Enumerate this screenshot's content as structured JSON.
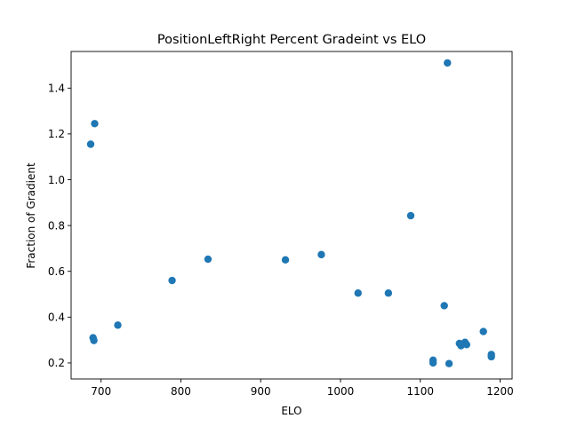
{
  "chart_data": {
    "type": "scatter",
    "title": "PositionLeftRight Percent Gradeint vs ELO",
    "xlabel": "ELO",
    "ylabel": "Fraction of Gradient",
    "xlim": [
      662.5,
      1215
    ],
    "ylim": [
      0.13,
      1.56
    ],
    "xticks": [
      700,
      800,
      900,
      1000,
      1100,
      1200
    ],
    "yticks": [
      0.2,
      0.4,
      0.6,
      0.8,
      1.0,
      1.2,
      1.4
    ],
    "xtick_labels": [
      "700",
      "800",
      "900",
      "1000",
      "1100",
      "1200"
    ],
    "ytick_labels": [
      "0.2",
      "0.4",
      "0.6",
      "0.8",
      "1.0",
      "1.2",
      "1.4"
    ],
    "grid": false,
    "marker_color": "#1f77b4",
    "points": [
      {
        "x": 687,
        "y": 1.155
      },
      {
        "x": 692,
        "y": 1.245
      },
      {
        "x": 690,
        "y": 0.31
      },
      {
        "x": 691,
        "y": 0.298
      },
      {
        "x": 721,
        "y": 0.365
      },
      {
        "x": 789,
        "y": 0.56
      },
      {
        "x": 834,
        "y": 0.653
      },
      {
        "x": 931,
        "y": 0.65
      },
      {
        "x": 976,
        "y": 0.673
      },
      {
        "x": 1022,
        "y": 0.505
      },
      {
        "x": 1060,
        "y": 0.505
      },
      {
        "x": 1088,
        "y": 0.843
      },
      {
        "x": 1116,
        "y": 0.212
      },
      {
        "x": 1116,
        "y": 0.2
      },
      {
        "x": 1130,
        "y": 0.45
      },
      {
        "x": 1134,
        "y": 1.51
      },
      {
        "x": 1136,
        "y": 0.197
      },
      {
        "x": 1149,
        "y": 0.285
      },
      {
        "x": 1151,
        "y": 0.275
      },
      {
        "x": 1156,
        "y": 0.29
      },
      {
        "x": 1158,
        "y": 0.28
      },
      {
        "x": 1179,
        "y": 0.337
      },
      {
        "x": 1189,
        "y": 0.237
      },
      {
        "x": 1189,
        "y": 0.227
      }
    ]
  }
}
